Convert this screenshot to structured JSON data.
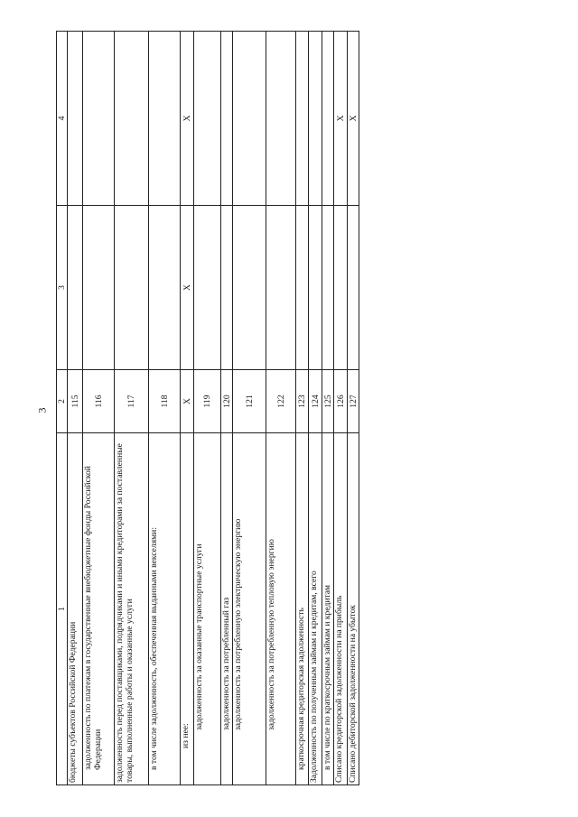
{
  "page_number": "3",
  "table": {
    "header": [
      "1",
      "2",
      "3",
      "4"
    ],
    "rows": [
      [
        "бюджеты субъектов Российской Федерации",
        "115",
        null,
        null
      ],
      [
        "задолженность по платежам в государственные внебюджетные фонды Российской Федерации",
        "116",
        null,
        null
      ],
      [
        "задолженность перед поставщиками, подрядчиками и иными кредиторами за поставленные товары, выполненные работы и оказанные услуги",
        "117",
        null,
        null
      ],
      [
        "в том числе задолженность, обеспеченная выданными векселями:",
        "118",
        null,
        null
      ],
      [
        "из нее:",
        "X",
        "X",
        "X"
      ],
      [
        "задолженность за оказанные транспортные услуги",
        "119",
        null,
        null
      ],
      [
        "задолженность за потребленный газ",
        "120",
        null,
        null
      ],
      [
        "задолженность за потребленную электрическую энергию",
        "121",
        null,
        null
      ],
      [
        "задолженность за потребленную тепловую энергию",
        "122",
        null,
        null
      ],
      [
        "краткосрочная кредиторская задолженность",
        "123",
        null,
        null
      ],
      [
        "Задолженность по полученным займам и кредитам, всего",
        "124",
        null,
        null
      ],
      [
        "в том числе по краткосрочным займам и кредитам",
        "125",
        null,
        null
      ],
      [
        "Списано кредиторской задолженности на прибыль",
        "126",
        null,
        "X"
      ],
      [
        "Списано дебиторской задолженности на убыток",
        "127",
        null,
        "X"
      ]
    ]
  }
}
